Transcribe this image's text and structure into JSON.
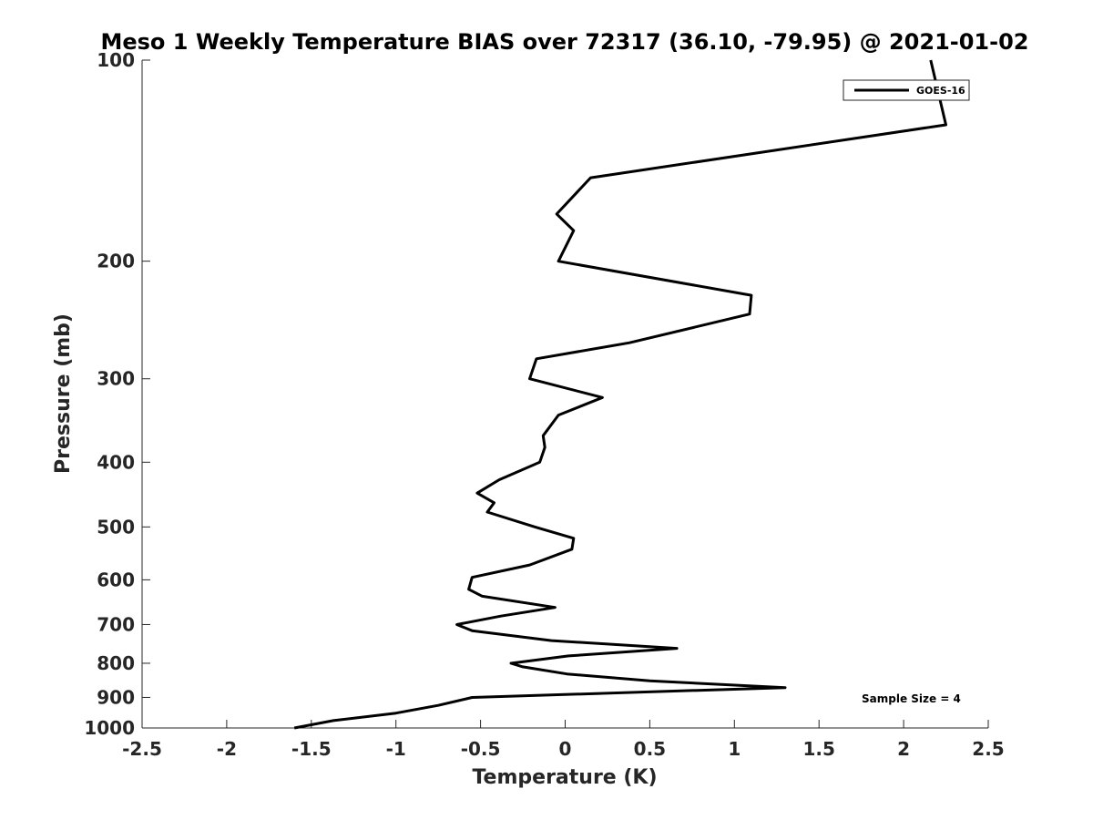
{
  "chart_data": {
    "type": "line",
    "title": "Meso 1 Weekly Temperature BIAS over 72317 (36.10, -79.95) @ 2021-01-02",
    "xlabel": "Temperature (K)",
    "ylabel": "Pressure (mb)",
    "xlim": [
      -2.5,
      2.5
    ],
    "ylim": [
      100,
      1000
    ],
    "y_scale": "log",
    "y_reversed": true,
    "x_ticks": [
      "-2.5",
      "-2",
      "-1.5",
      "-1",
      "-0.5",
      "0",
      "0.5",
      "1",
      "1.5",
      "2",
      "2.5"
    ],
    "y_ticks": [
      "100",
      "200",
      "300",
      "400",
      "500",
      "600",
      "700",
      "800",
      "900",
      "1000"
    ],
    "grid": false,
    "legend_position": "top-right",
    "annotation": "Sample Size = 4",
    "series": [
      {
        "name": "GOES-16",
        "color": "#000000",
        "x": [
          2.16,
          2.25,
          0.15,
          -0.05,
          0.05,
          -0.04,
          1.1,
          1.09,
          0.38,
          -0.17,
          -0.21,
          0.22,
          -0.04,
          -0.13,
          -0.12,
          -0.15,
          -0.39,
          -0.52,
          -0.42,
          -0.46,
          -0.18,
          0.05,
          0.04,
          -0.21,
          -0.55,
          -0.57,
          -0.49,
          -0.06,
          -0.38,
          -0.64,
          -0.55,
          -0.08,
          0.66,
          0.02,
          -0.32,
          -0.25,
          0.01,
          0.5,
          1.3,
          -0.55,
          -0.75,
          -1.0,
          -1.37,
          -1.6
        ],
        "y": [
          100,
          125,
          150,
          170,
          180,
          200,
          225,
          240,
          265,
          280,
          300,
          320,
          340,
          365,
          380,
          400,
          425,
          445,
          460,
          475,
          500,
          520,
          540,
          570,
          595,
          620,
          635,
          660,
          680,
          700,
          715,
          740,
          760,
          780,
          800,
          810,
          830,
          850,
          870,
          900,
          925,
          950,
          975,
          1000
        ]
      }
    ]
  }
}
